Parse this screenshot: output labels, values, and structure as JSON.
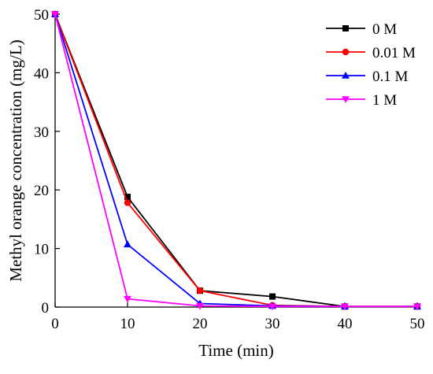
{
  "chart_data": {
    "type": "line",
    "title": "",
    "xlabel": "Time (min)",
    "ylabel": "Methyl orange concentration (mg/L)",
    "x": [
      0,
      10,
      20,
      30,
      40,
      50
    ],
    "xlim": [
      0,
      50
    ],
    "ylim": [
      0,
      50
    ],
    "xticks": [
      0,
      10,
      20,
      30,
      40,
      50
    ],
    "yticks": [
      0,
      10,
      20,
      30,
      40,
      50
    ],
    "grid": false,
    "legend_position": "top-right",
    "series": [
      {
        "name": "0 M",
        "color": "#000000",
        "marker": "square",
        "values": [
          50,
          18.8,
          2.8,
          1.8,
          0.1,
          0.1
        ]
      },
      {
        "name": "0.01 M",
        "color": "#ff0000",
        "marker": "circle",
        "values": [
          50,
          17.8,
          2.8,
          0.3,
          0.1,
          0.1
        ]
      },
      {
        "name": "0.1 M",
        "color": "#0000ff",
        "marker": "triangle-up",
        "values": [
          50,
          10.7,
          0.6,
          0.2,
          0.1,
          0.1
        ]
      },
      {
        "name": "1 M",
        "color": "#ff00ff",
        "marker": "triangle-down",
        "values": [
          50,
          1.4,
          0.2,
          0.1,
          0.1,
          0.1
        ]
      }
    ]
  }
}
